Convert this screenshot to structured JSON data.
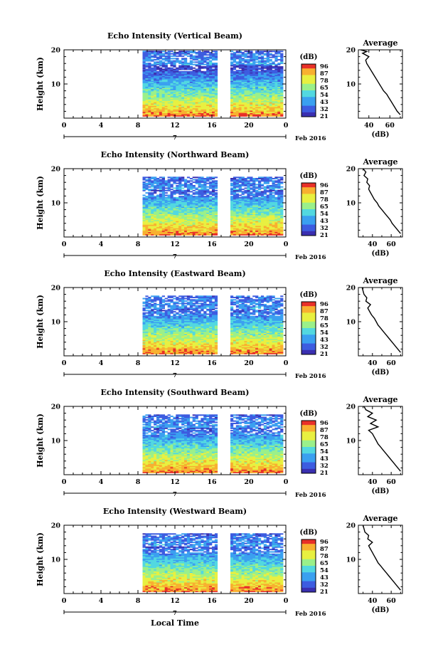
{
  "figure": {
    "xlabel": "Local Time",
    "date_label": "Feb 2016",
    "date_day": "7",
    "height_label": "Height (km)",
    "colorbar_unit": "(dB)",
    "colorbar_labels": [
      "96",
      "87",
      "78",
      "65",
      "54",
      "43",
      "32",
      "21"
    ],
    "avg_title": "Average",
    "avg_xlabel": "(dB)",
    "colors": {
      "colormap": [
        "#3a2fb0",
        "#3d5ce0",
        "#3aa0f0",
        "#52d8e0",
        "#9af08a",
        "#e8f040",
        "#f8b030",
        "#e83028"
      ],
      "axis": "#000000",
      "background": "#ffffff"
    }
  },
  "chart_data": [
    {
      "type": "heatmap",
      "title": "Echo Intensity (Vertical Beam)",
      "xlabel": "",
      "ylabel": "Height (km)",
      "xlim": [
        0,
        24
      ],
      "ylim": [
        0,
        20
      ],
      "xticks": [
        "0",
        "4",
        "8",
        "12",
        "16",
        "20",
        "0"
      ],
      "yticks": [
        "20",
        "10"
      ],
      "data_intervals_h": [
        [
          8.5,
          16.6
        ],
        [
          18.0,
          23.5
        ]
      ],
      "echo_top_km": 19.5,
      "colorbar_db": [
        21,
        96
      ],
      "average_profile": {
        "xticks": [
          "40",
          "60"
        ],
        "xlim": [
          30,
          72
        ],
        "ylim": [
          0,
          20
        ],
        "x_db": [
          70,
          67,
          65,
          63,
          61,
          59,
          57,
          54,
          52,
          50,
          48,
          46,
          44,
          42,
          40,
          38,
          37,
          40,
          34,
          38,
          32
        ],
        "y_km": [
          1,
          2,
          3,
          4,
          5,
          6,
          7,
          8,
          9,
          10,
          11,
          12,
          13,
          14,
          15,
          16,
          17,
          18,
          19,
          19.5,
          20
        ]
      }
    },
    {
      "type": "heatmap",
      "title": "Echo Intensity (Northward Beam)",
      "xlabel": "",
      "ylabel": "Height (km)",
      "xlim": [
        0,
        24
      ],
      "ylim": [
        0,
        20
      ],
      "xticks": [
        "0",
        "4",
        "8",
        "12",
        "16",
        "20",
        "0"
      ],
      "yticks": [
        "20",
        "10"
      ],
      "data_intervals_h": [
        [
          8.5,
          16.6
        ],
        [
          18.0,
          23.5
        ]
      ],
      "echo_top_km": 17.5,
      "colorbar_db": [
        21,
        96
      ],
      "average_profile": {
        "xticks": [
          "40",
          "60"
        ],
        "xlim": [
          25,
          72
        ],
        "ylim": [
          0,
          20
        ],
        "x_db": [
          70,
          67,
          64,
          61,
          59,
          56,
          53,
          50,
          47,
          45,
          42,
          40,
          38,
          36,
          37,
          34,
          35,
          31,
          33,
          30
        ],
        "y_km": [
          1,
          2,
          3,
          4,
          5,
          6,
          7,
          8,
          9,
          10,
          11,
          12,
          13,
          14,
          15,
          16,
          17,
          18,
          19,
          20
        ]
      }
    },
    {
      "type": "heatmap",
      "title": "Echo Intensity (Eastward Beam)",
      "xlabel": "",
      "ylabel": "Height (km)",
      "xlim": [
        0,
        24
      ],
      "ylim": [
        0,
        20
      ],
      "xticks": [
        "0",
        "4",
        "8",
        "12",
        "16",
        "20",
        "0"
      ],
      "yticks": [
        "20",
        "10"
      ],
      "data_intervals_h": [
        [
          8.5,
          16.6
        ],
        [
          18.0,
          23.5
        ]
      ],
      "echo_top_km": 17.5,
      "colorbar_db": [
        21,
        96
      ],
      "average_profile": {
        "xticks": [
          "40",
          "60"
        ],
        "xlim": [
          25,
          72
        ],
        "ylim": [
          0,
          20
        ],
        "x_db": [
          70,
          67,
          64,
          61,
          58,
          55,
          52,
          49,
          46,
          44,
          42,
          39,
          37,
          35,
          38,
          33,
          34,
          31,
          30,
          29
        ],
        "y_km": [
          1,
          2,
          3,
          4,
          5,
          6,
          7,
          8,
          9,
          10,
          11,
          12,
          13,
          14,
          15,
          16,
          17,
          18,
          19,
          20
        ]
      }
    },
    {
      "type": "heatmap",
      "title": "Echo Intensity (Southward Beam)",
      "xlabel": "",
      "ylabel": "Height (km)",
      "xlim": [
        0,
        24
      ],
      "ylim": [
        0,
        20
      ],
      "xticks": [
        "0",
        "4",
        "8",
        "12",
        "16",
        "20",
        "0"
      ],
      "yticks": [
        "20",
        "10"
      ],
      "data_intervals_h": [
        [
          8.5,
          16.6
        ],
        [
          18.0,
          23.5
        ]
      ],
      "echo_top_km": 17.5,
      "colorbar_db": [
        21,
        96
      ],
      "average_profile": {
        "xticks": [
          "40",
          "60"
        ],
        "xlim": [
          25,
          72
        ],
        "ylim": [
          0,
          20
        ],
        "x_db": [
          70,
          67,
          64,
          61,
          58,
          55,
          52,
          49,
          46,
          44,
          42,
          40,
          36,
          46,
          38,
          44,
          35,
          40,
          33,
          31
        ],
        "y_km": [
          1,
          2,
          3,
          4,
          5,
          6,
          7,
          8,
          9,
          10,
          11,
          12,
          13,
          14,
          15,
          16,
          17,
          18,
          19,
          20
        ]
      }
    },
    {
      "type": "heatmap",
      "title": "Echo Intensity (Westward Beam)",
      "xlabel": "Local Time",
      "ylabel": "Height (km)",
      "xlim": [
        0,
        24
      ],
      "ylim": [
        0,
        20
      ],
      "xticks": [
        "0",
        "4",
        "8",
        "12",
        "16",
        "20",
        "0"
      ],
      "yticks": [
        "20",
        "10"
      ],
      "data_intervals_h": [
        [
          8.5,
          16.6
        ],
        [
          18.0,
          23.5
        ]
      ],
      "echo_top_km": 17.5,
      "colorbar_db": [
        21,
        96
      ],
      "average_profile": {
        "xticks": [
          "40",
          "60"
        ],
        "xlim": [
          25,
          72
        ],
        "ylim": [
          0,
          20
        ],
        "x_db": [
          70,
          67,
          64,
          61,
          58,
          55,
          52,
          49,
          46,
          44,
          42,
          40,
          38,
          36,
          40,
          35,
          36,
          32,
          31,
          30
        ],
        "y_km": [
          1,
          2,
          3,
          4,
          5,
          6,
          7,
          8,
          9,
          10,
          11,
          12,
          13,
          14,
          15,
          16,
          17,
          18,
          19,
          20
        ]
      }
    }
  ]
}
